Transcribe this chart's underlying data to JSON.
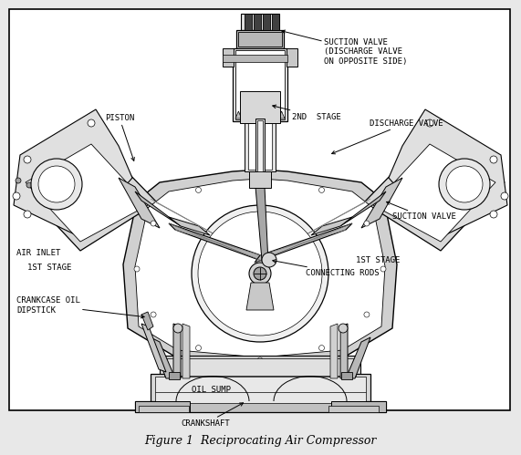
{
  "figure_caption": "Figure 1  Reciprocating Air Compressor",
  "background_color": "#e8e8e8",
  "diagram_bg": "#ffffff",
  "border_color": "#000000",
  "line_color": "#000000",
  "labels": {
    "suction_valve_top": "SUCTION VALVE\n(DISCHARGE VALVE\nON OPPOSITE SIDE)",
    "piston": "PISTON",
    "second_stage": "2ND  STAGE",
    "discharge_valve": "DISCHARGE VALVE",
    "air_inlet": "AIR INLET",
    "first_stage_left": "1ST STAGE",
    "crankcase_oil": "CRANKCASE OIL\nDIPSTICK",
    "oil_sump": "OIL SUMP",
    "crankshaft": "CRANKSHAFT",
    "connecting_rods": "CONNECTING RODS",
    "first_stage_right": "1ST STAGE",
    "suction_valve_right": "SUCTION VALVE"
  },
  "caption_fontsize": 9,
  "label_fontsize": 6.5
}
